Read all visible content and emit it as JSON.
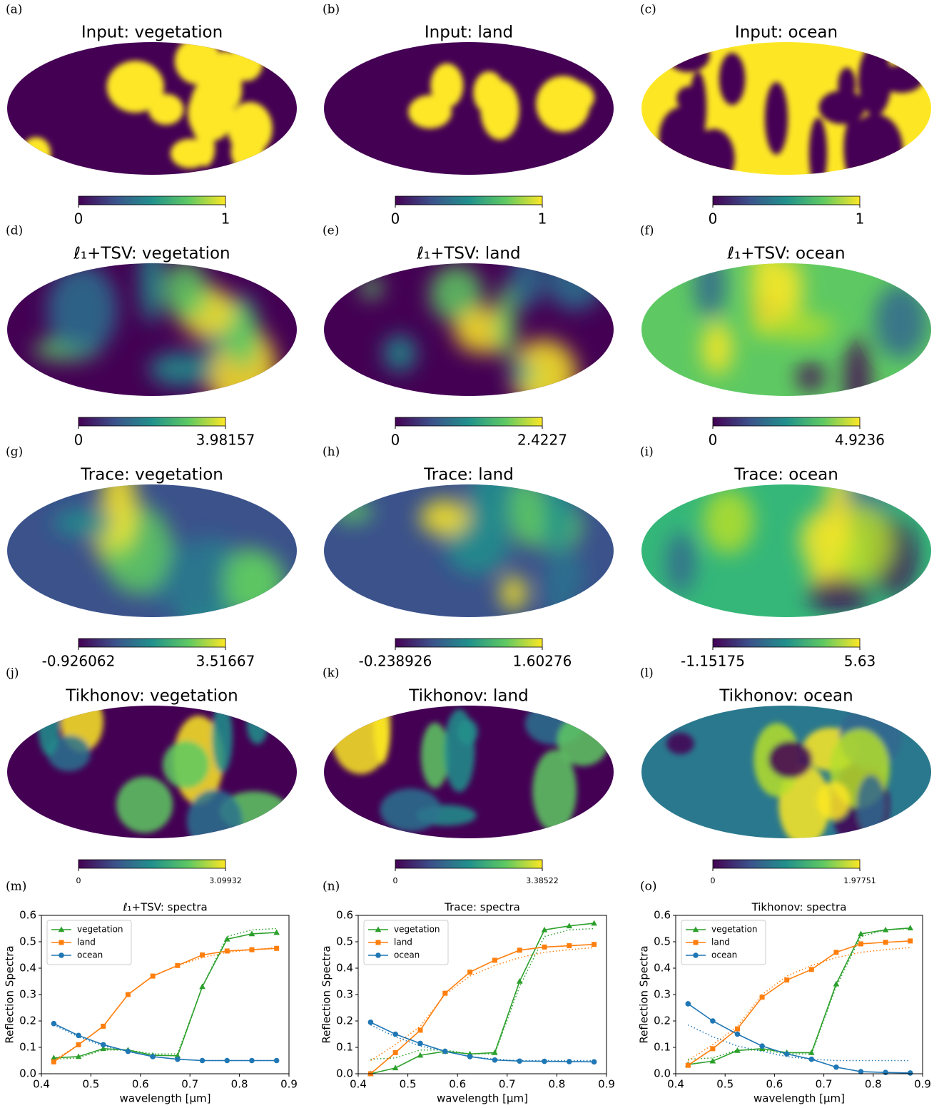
{
  "maps": [
    {
      "panel": "(a)",
      "title": "Input: vegetation",
      "colorbar_ticks": [
        0,
        1
      ]
    },
    {
      "panel": "(b)",
      "title": "Input: land",
      "colorbar_ticks": [
        0,
        1
      ]
    },
    {
      "panel": "(c)",
      "title": "Input: ocean",
      "colorbar_ticks": [
        0,
        1
      ]
    },
    {
      "panel": "(d)",
      "title": "ℓ₁+TSV: vegetation",
      "colorbar_ticks": [
        0,
        3.98157
      ]
    },
    {
      "panel": "(e)",
      "title": "ℓ₁+TSV: land",
      "colorbar_ticks": [
        0,
        2.4227
      ]
    },
    {
      "panel": "(f)",
      "title": "ℓ₁+TSV: ocean",
      "colorbar_ticks": [
        0,
        4.9236
      ]
    },
    {
      "panel": "(g)",
      "title": "Trace: vegetation",
      "colorbar_ticks": [
        -0.926062,
        3.51667
      ]
    },
    {
      "panel": "(h)",
      "title": "Trace: land",
      "colorbar_ticks": [
        -0.238926,
        1.60276
      ]
    },
    {
      "panel": "(i)",
      "title": "Trace: ocean",
      "colorbar_ticks": [
        -1.15175,
        5.63
      ]
    },
    {
      "panel": "(j)",
      "title": "Tikhonov: vegetation",
      "colorbar_ticks": [
        0,
        3.09932
      ]
    },
    {
      "panel": "(k)",
      "title": "Tikhonov: land",
      "colorbar_ticks": [
        0,
        3.38522
      ]
    },
    {
      "panel": "(l)",
      "title": "Tikhonov: ocean",
      "colorbar_ticks": [
        0,
        1.97751
      ]
    }
  ],
  "chart_data": [
    {
      "type": "line",
      "panel": "(m)",
      "title": "ℓ₁+TSV: spectra",
      "xlabel": "wavelength [μm]",
      "ylabel": "Reflection Spectra",
      "x": [
        0.425,
        0.475,
        0.525,
        0.575,
        0.625,
        0.675,
        0.725,
        0.775,
        0.825,
        0.875
      ],
      "xlim": [
        0.4,
        0.9
      ],
      "xticks": [
        0.4,
        0.5,
        0.6,
        0.7,
        0.8,
        0.9
      ],
      "ylim": [
        0,
        0.6
      ],
      "yticks": [
        {
          "value": 0,
          "label": "0.0"
        },
        0.1,
        0.2,
        0.3,
        0.4,
        0.5,
        0.6
      ],
      "legend": "upper left",
      "series": [
        {
          "name": "vegetation",
          "color": "#2ca02c",
          "marker": "triangle",
          "values": [
            0.06,
            0.065,
            0.095,
            0.09,
            0.07,
            0.068,
            0.33,
            0.51,
            0.53,
            0.535
          ]
        },
        {
          "name": "land",
          "color": "#ff7f0e",
          "marker": "square",
          "values": [
            0.045,
            0.11,
            0.18,
            0.3,
            0.37,
            0.41,
            0.45,
            0.465,
            0.47,
            0.475
          ]
        },
        {
          "name": "ocean",
          "color": "#1f77b4",
          "marker": "circle",
          "values": [
            0.19,
            0.145,
            0.11,
            0.085,
            0.065,
            0.055,
            0.05,
            0.05,
            0.05,
            0.05
          ]
        },
        {
          "color": "#2ca02c",
          "linestyle": "dotted",
          "values": [
            0.055,
            0.06,
            0.09,
            0.09,
            0.075,
            0.075,
            0.33,
            0.52,
            0.545,
            0.55
          ]
        },
        {
          "color": "#ff7f0e",
          "linestyle": "dotted",
          "values": [
            0.05,
            0.11,
            0.18,
            0.3,
            0.37,
            0.41,
            0.44,
            0.46,
            0.47,
            0.478
          ]
        },
        {
          "color": "#1f77b4",
          "linestyle": "dotted",
          "values": [
            0.185,
            0.14,
            0.105,
            0.085,
            0.065,
            0.055,
            0.05,
            0.05,
            0.05,
            0.05
          ]
        }
      ]
    },
    {
      "type": "line",
      "panel": "(n)",
      "title": "Trace: spectra",
      "xlabel": "wavelength [μm]",
      "ylabel": "Reflection Spectra",
      "x": [
        0.425,
        0.475,
        0.525,
        0.575,
        0.625,
        0.675,
        0.725,
        0.775,
        0.825,
        0.875
      ],
      "xlim": [
        0.4,
        0.9
      ],
      "xticks": [
        0.4,
        0.5,
        0.6,
        0.7,
        0.8,
        0.9
      ],
      "ylim": [
        0,
        0.6
      ],
      "yticks": [
        {
          "value": 0,
          "label": "0.0"
        },
        0.1,
        0.2,
        0.3,
        0.4,
        0.5,
        0.6
      ],
      "legend": "upper left",
      "series": [
        {
          "name": "vegetation",
          "color": "#2ca02c",
          "marker": "triangle",
          "values": [
            0,
            0.022,
            0.07,
            0.085,
            0.075,
            0.08,
            0.35,
            0.545,
            0.56,
            0.57
          ]
        },
        {
          "name": "land",
          "color": "#ff7f0e",
          "marker": "square",
          "values": [
            0,
            0.08,
            0.165,
            0.305,
            0.385,
            0.43,
            0.468,
            0.48,
            0.485,
            0.49
          ]
        },
        {
          "name": "ocean",
          "color": "#1f77b4",
          "marker": "circle",
          "values": [
            0.195,
            0.15,
            0.115,
            0.085,
            0.065,
            0.052,
            0.048,
            0.047,
            0.046,
            0.045
          ]
        },
        {
          "color": "#2ca02c",
          "linestyle": "dotted",
          "values": [
            0.055,
            0.06,
            0.09,
            0.09,
            0.075,
            0.075,
            0.33,
            0.52,
            0.545,
            0.55
          ]
        },
        {
          "color": "#ff7f0e",
          "linestyle": "dotted",
          "values": [
            0.05,
            0.11,
            0.18,
            0.3,
            0.37,
            0.41,
            0.44,
            0.46,
            0.47,
            0.478
          ]
        },
        {
          "color": "#1f77b4",
          "linestyle": "dotted",
          "values": [
            0.185,
            0.14,
            0.105,
            0.085,
            0.065,
            0.055,
            0.05,
            0.05,
            0.05,
            0.05
          ]
        }
      ]
    },
    {
      "type": "line",
      "panel": "(o)",
      "title": "Tikhonov: spectra",
      "xlabel": "wavelength [μm]",
      "ylabel": "Reflection Spectra",
      "x": [
        0.425,
        0.475,
        0.525,
        0.575,
        0.625,
        0.675,
        0.725,
        0.775,
        0.825,
        0.875
      ],
      "xlim": [
        0.4,
        0.9
      ],
      "xticks": [
        0.4,
        0.5,
        0.6,
        0.7,
        0.8,
        0.9
      ],
      "ylim": [
        0,
        0.6
      ],
      "yticks": [
        {
          "value": 0,
          "label": "0.0"
        },
        0.1,
        0.2,
        0.3,
        0.4,
        0.5,
        0.6
      ],
      "legend": "upper left",
      "series": [
        {
          "name": "vegetation",
          "color": "#2ca02c",
          "marker": "triangle",
          "values": [
            0.035,
            0.048,
            0.088,
            0.095,
            0.08,
            0.08,
            0.34,
            0.53,
            0.545,
            0.552
          ]
        },
        {
          "name": "land",
          "color": "#ff7f0e",
          "marker": "square",
          "values": [
            0.032,
            0.095,
            0.17,
            0.29,
            0.355,
            0.395,
            0.46,
            0.492,
            0.498,
            0.503
          ]
        },
        {
          "name": "ocean",
          "color": "#1f77b4",
          "marker": "circle",
          "values": [
            0.265,
            0.2,
            0.15,
            0.105,
            0.075,
            0.055,
            0.025,
            0.008,
            0.005,
            0.003
          ]
        },
        {
          "color": "#2ca02c",
          "linestyle": "dotted",
          "values": [
            0.055,
            0.06,
            0.09,
            0.09,
            0.075,
            0.075,
            0.33,
            0.52,
            0.545,
            0.55
          ]
        },
        {
          "color": "#ff7f0e",
          "linestyle": "dotted",
          "values": [
            0.05,
            0.11,
            0.18,
            0.3,
            0.37,
            0.41,
            0.44,
            0.46,
            0.47,
            0.478
          ]
        },
        {
          "color": "#1f77b4",
          "linestyle": "dotted",
          "values": [
            0.185,
            0.14,
            0.105,
            0.085,
            0.065,
            0.055,
            0.05,
            0.05,
            0.05,
            0.05
          ]
        }
      ]
    }
  ]
}
